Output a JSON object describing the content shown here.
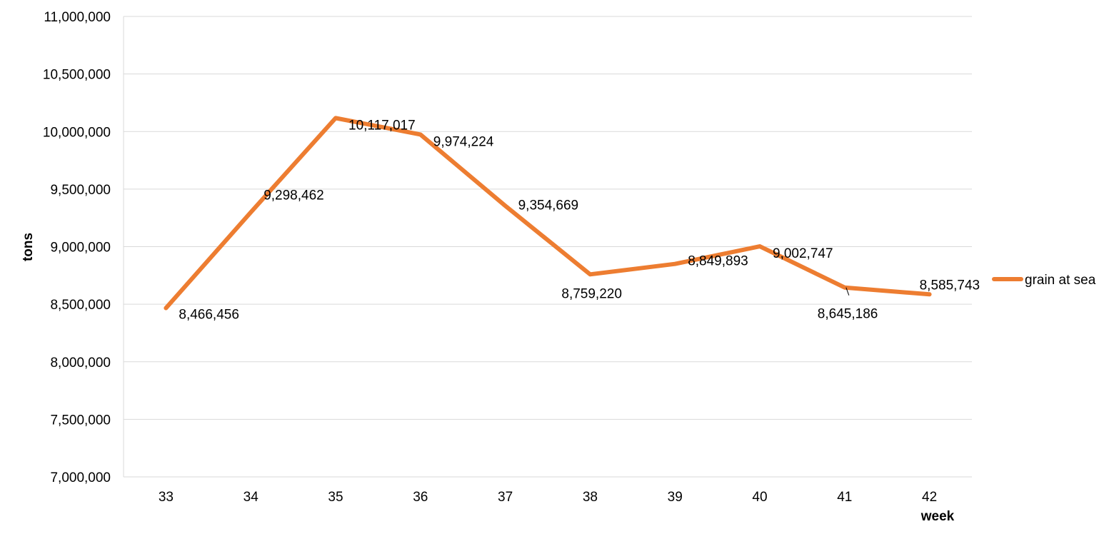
{
  "chart_data": {
    "type": "line",
    "x": [
      "33",
      "34",
      "35",
      "36",
      "37",
      "38",
      "39",
      "40",
      "41",
      "42"
    ],
    "series": [
      {
        "name": "grain at sea",
        "color": "#ED7D31",
        "values": [
          8466456,
          9298462,
          10117017,
          9974224,
          9354669,
          8759220,
          8849893,
          9002747,
          8645186,
          8585743
        ],
        "labels": [
          "8,466,456",
          "9,298,462",
          "10,117,017",
          "9,974,224",
          "9,354,669",
          "8,759,220",
          "8,849,893",
          "9,002,747",
          "8,645,186",
          "8,585,743"
        ]
      }
    ],
    "xlabel": "week",
    "ylabel": "tons",
    "ylim": [
      7000000,
      11000000
    ],
    "yticks": [
      7000000,
      7500000,
      8000000,
      8500000,
      9000000,
      9500000,
      10000000,
      10500000,
      11000000
    ],
    "ytick_labels": [
      "7,000,000",
      "7,500,000",
      "8,000,000",
      "8,500,000",
      "9,000,000",
      "9,500,000",
      "10,000,000",
      "10,500,000",
      "11,000,000"
    ],
    "grid": true,
    "legend_position": "right",
    "gridline_color": "#D9D9D9"
  }
}
